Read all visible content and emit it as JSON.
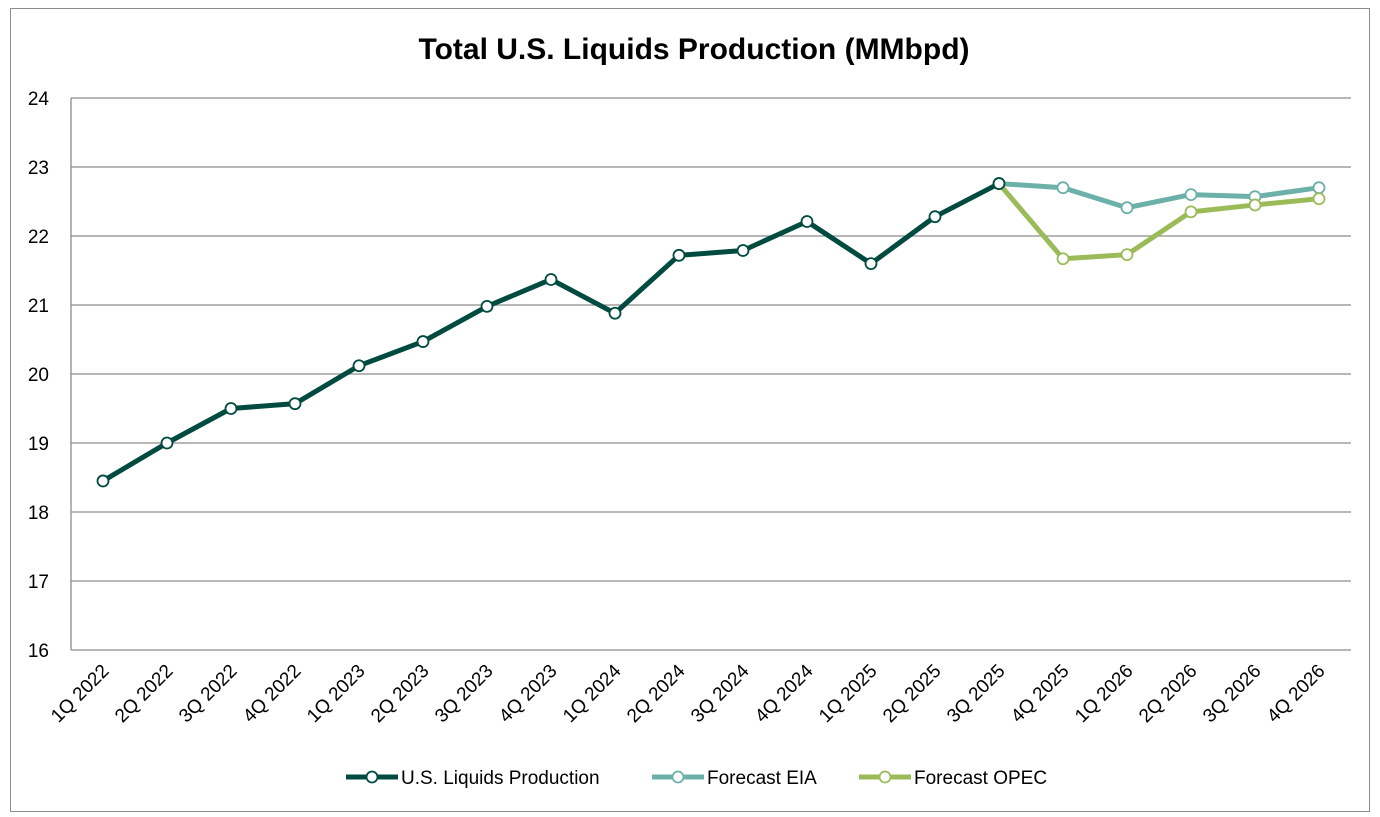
{
  "chart_data": {
    "type": "line",
    "title": "Total U.S. Liquids Production (MMbpd)",
    "xlabel": "",
    "ylabel": "",
    "ylim": [
      16,
      24
    ],
    "ytick_step": 1,
    "grid": true,
    "legend_position": "bottom-center",
    "categories": [
      "1Q 2022",
      "2Q 2022",
      "3Q 2022",
      "4Q 2022",
      "1Q 2023",
      "2Q 2023",
      "3Q 2023",
      "4Q 2023",
      "1Q 2024",
      "2Q 2024",
      "3Q 2024",
      "4Q 2024",
      "1Q 2025",
      "2Q 2025",
      "3Q 2025",
      "4Q 2025",
      "1Q 2026",
      "2Q 2026",
      "3Q 2026",
      "4Q 2026"
    ],
    "series": [
      {
        "name": "U.S. Liquids Production",
        "color": "#004b40",
        "values": [
          18.45,
          19.0,
          19.5,
          19.57,
          20.12,
          20.47,
          20.98,
          21.37,
          20.88,
          21.72,
          21.79,
          22.21,
          21.6,
          22.28,
          22.76,
          null,
          null,
          null,
          null,
          null
        ]
      },
      {
        "name": "Forecast EIA",
        "color": "#6bb1a9",
        "values": [
          null,
          null,
          null,
          null,
          null,
          null,
          null,
          null,
          null,
          null,
          null,
          null,
          null,
          null,
          22.76,
          22.7,
          22.41,
          22.6,
          22.57,
          22.7
        ]
      },
      {
        "name": "Forecast OPEC",
        "color": "#9bbb59",
        "values": [
          null,
          null,
          null,
          null,
          null,
          null,
          null,
          null,
          null,
          null,
          null,
          null,
          null,
          null,
          22.76,
          21.67,
          21.73,
          22.35,
          22.45,
          22.54
        ]
      }
    ]
  }
}
